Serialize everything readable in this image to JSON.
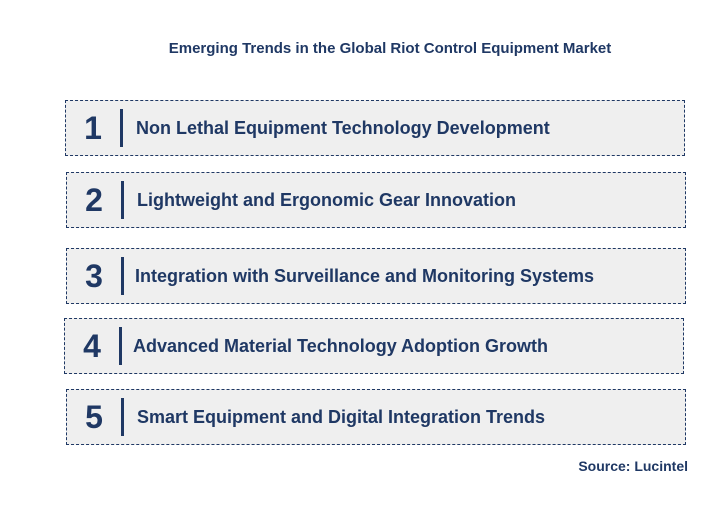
{
  "title": "Emerging Trends in the Global Riot Control Equipment Market",
  "trends": [
    {
      "number": "1",
      "label": "Non Lethal Equipment Technology Development"
    },
    {
      "number": "2",
      "label": "Lightweight and Ergonomic Gear Innovation"
    },
    {
      "number": "3",
      "label": "Integration with Surveillance and Monitoring Systems"
    },
    {
      "number": "4",
      "label": "Advanced Material Technology Adoption Growth"
    },
    {
      "number": "5",
      "label": "Smart Equipment and Digital Integration Trends"
    }
  ],
  "source": "Source: Lucintel",
  "colors": {
    "text": "#1f3864",
    "box_background": "#efefef",
    "box_border": "#1f3864"
  }
}
